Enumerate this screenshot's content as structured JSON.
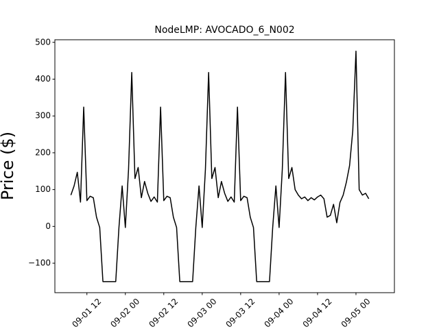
{
  "chart_data": {
    "type": "line",
    "title": "NodeLMP: AVOCADO_6_N002",
    "y_label": "Price ($)",
    "color": "#000000",
    "x": [
      "09-01 07",
      "09-01 08",
      "09-01 09",
      "09-01 10",
      "09-01 11",
      "09-01 12",
      "09-01 13",
      "09-01 14",
      "09-01 15",
      "09-01 16",
      "09-01 17",
      "09-01 18",
      "09-01 19",
      "09-01 20",
      "09-01 21",
      "09-01 22",
      "09-01 23",
      "09-02 00",
      "09-02 01",
      "09-02 02",
      "09-02 03",
      "09-02 04",
      "09-02 05",
      "09-02 06",
      "09-02 07",
      "09-02 08",
      "09-02 09",
      "09-02 10",
      "09-02 11",
      "09-02 12",
      "09-02 13",
      "09-02 14",
      "09-02 15",
      "09-02 16",
      "09-02 17",
      "09-02 18",
      "09-02 19",
      "09-02 20",
      "09-02 21",
      "09-02 22",
      "09-02 23",
      "09-03 00",
      "09-03 01",
      "09-03 02",
      "09-03 03",
      "09-03 04",
      "09-03 05",
      "09-03 06",
      "09-03 07",
      "09-03 08",
      "09-03 09",
      "09-03 10",
      "09-03 11",
      "09-03 12",
      "09-03 13",
      "09-03 14",
      "09-03 15",
      "09-03 16",
      "09-03 17",
      "09-03 18",
      "09-03 19",
      "09-03 20",
      "09-03 21",
      "09-03 22",
      "09-03 23",
      "09-04 00",
      "09-04 01",
      "09-04 02",
      "09-04 03",
      "09-04 04",
      "09-04 05",
      "09-04 06",
      "09-04 07",
      "09-04 08",
      "09-04 09",
      "09-04 10",
      "09-04 11",
      "09-04 12",
      "09-04 13",
      "09-04 14",
      "09-04 15",
      "09-04 16",
      "09-04 17",
      "09-04 18",
      "09-04 19",
      "09-04 20",
      "09-04 21",
      "09-04 22",
      "09-04 23",
      "09-05 00",
      "09-05 01",
      "09-05 02",
      "09-05 03",
      "09-05 04"
    ],
    "values": [
      85,
      110,
      147,
      66,
      324,
      70,
      82,
      78,
      25,
      -3,
      -150,
      -150,
      -150,
      -150,
      -150,
      -3,
      110,
      -3,
      155,
      418,
      130,
      160,
      78,
      122,
      90,
      68,
      80,
      66,
      324,
      70,
      82,
      78,
      25,
      -3,
      -150,
      -150,
      -150,
      -150,
      -150,
      -3,
      110,
      -3,
      155,
      418,
      130,
      160,
      78,
      122,
      90,
      68,
      80,
      66,
      324,
      70,
      82,
      78,
      25,
      -3,
      -150,
      -150,
      -150,
      -150,
      -150,
      -3,
      110,
      -3,
      155,
      418,
      130,
      160,
      100,
      85,
      75,
      80,
      70,
      78,
      72,
      80,
      85,
      75,
      25,
      30,
      60,
      10,
      65,
      85,
      120,
      165,
      260,
      476,
      100,
      85,
      90,
      75
    ],
    "xlim": [
      "09-01 02",
      "09-05 12"
    ],
    "xticks": [
      "09-01 12",
      "09-02 00",
      "09-02 12",
      "09-03 00",
      "09-03 12",
      "09-04 00",
      "09-04 12",
      "09-05 00"
    ],
    "ylim": [
      -180,
      507
    ],
    "yticks": [
      {
        "value": -100,
        "label": "−100"
      },
      0,
      100,
      200,
      300,
      400,
      500
    ]
  }
}
